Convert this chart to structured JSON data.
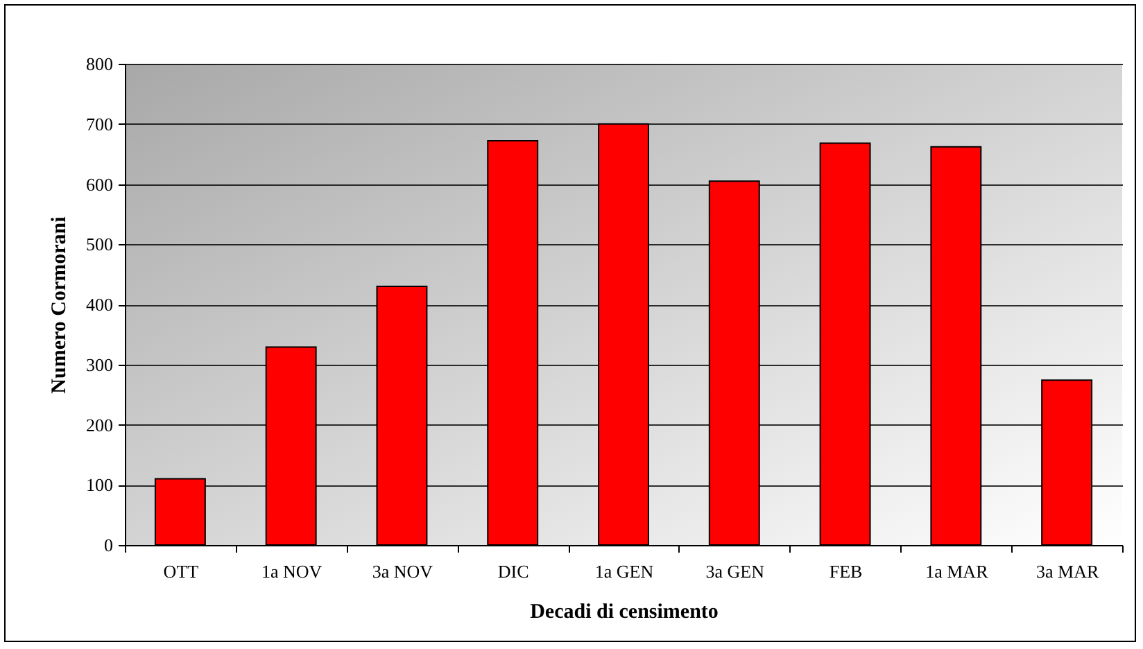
{
  "chart_data": {
    "type": "bar",
    "xlabel": "Decadi di censimento",
    "ylabel": "Numero Cormorani",
    "categories": [
      "OTT",
      "1a NOV",
      "3a NOV",
      "DIC",
      "1a GEN",
      "3a GEN",
      "FEB",
      "1a MAR",
      "3a MAR"
    ],
    "values": [
      110,
      329,
      430,
      672,
      700,
      605,
      668,
      662,
      274
    ],
    "color": "#ff0000",
    "ylim": [
      0,
      800
    ],
    "yticks": [
      0,
      100,
      200,
      300,
      400,
      500,
      600,
      700,
      800
    ],
    "grid": "y"
  }
}
